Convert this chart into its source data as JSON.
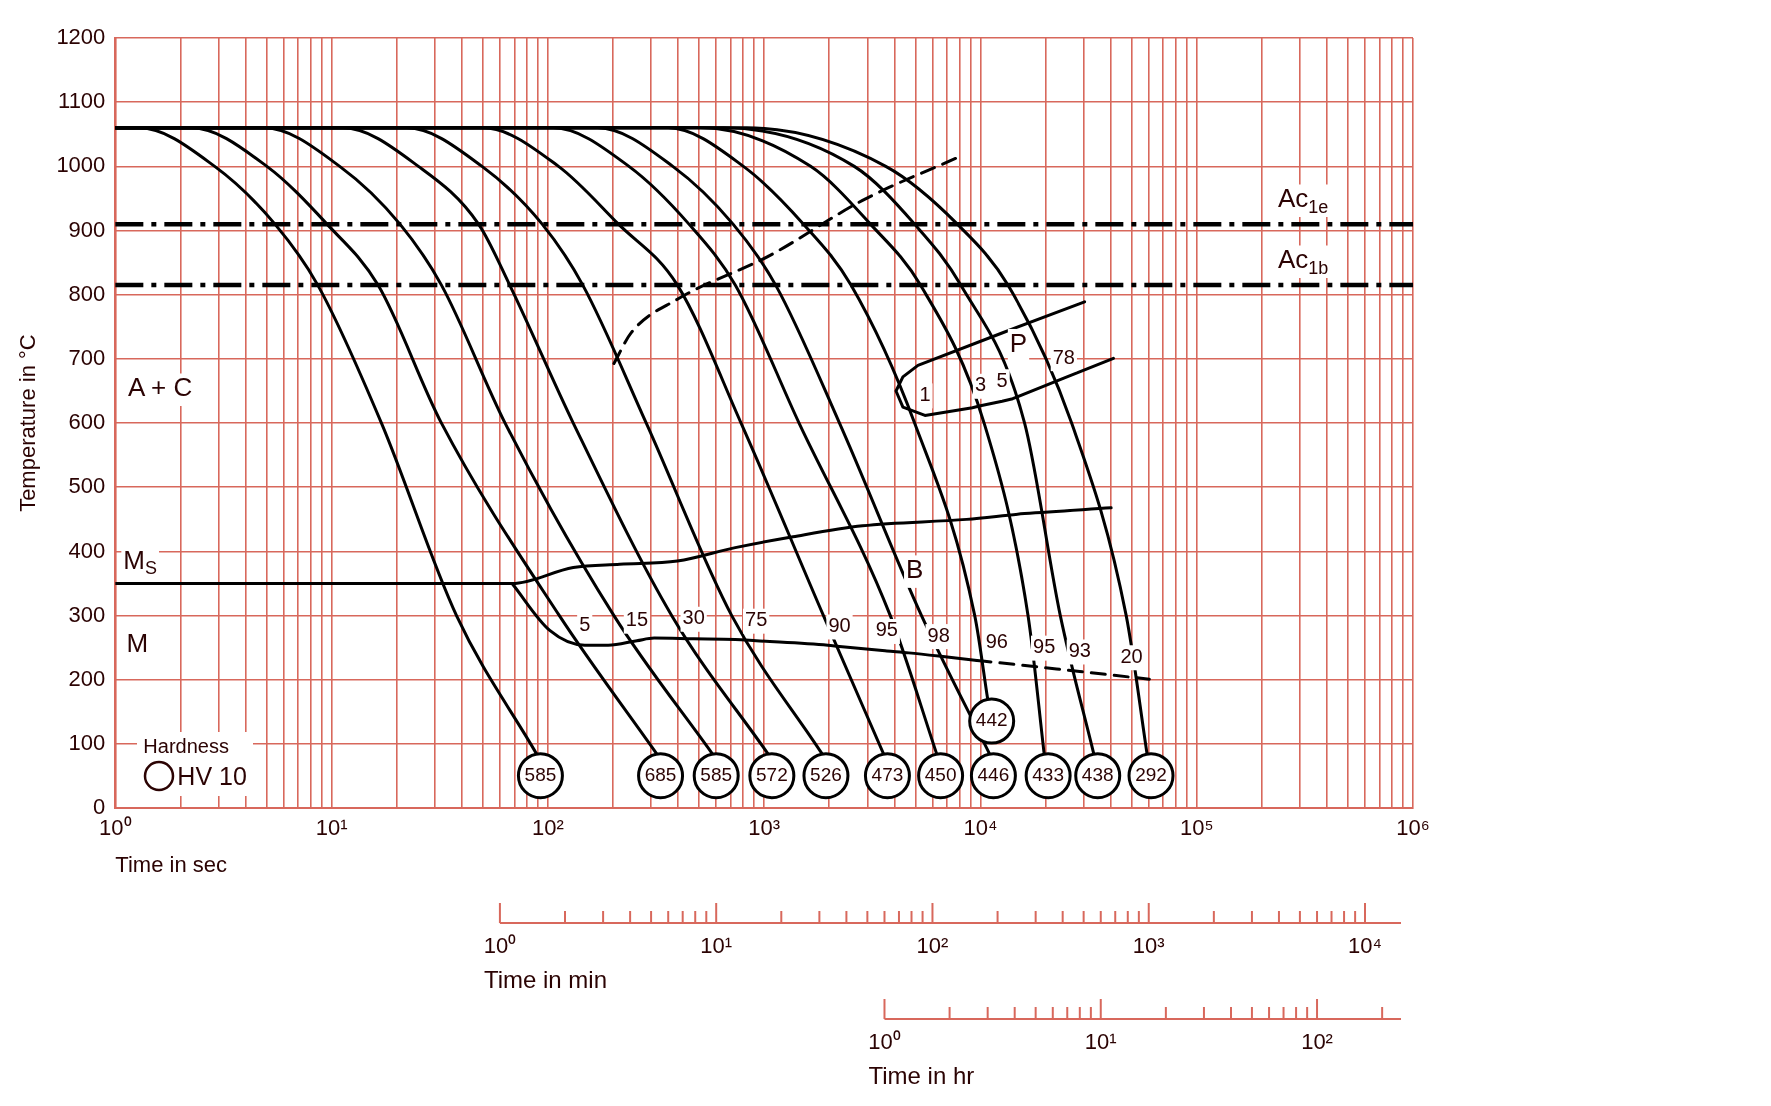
{
  "chart_data": {
    "type": "line",
    "xlabel": "Time in sec",
    "ylabel": "Temperature in °C",
    "log": "x",
    "grid": true,
    "legend_title": "Hardness",
    "xlim": [
      1,
      1000000
    ],
    "ylim": [
      0,
      1200
    ],
    "xticks": [
      {
        "value": 1,
        "label": "10⁰"
      },
      {
        "value": 2,
        "label": null
      },
      {
        "value": 3,
        "label": null
      },
      {
        "value": 4,
        "label": null
      },
      {
        "value": 5,
        "label": null
      },
      {
        "value": 6,
        "label": null
      },
      {
        "value": 7,
        "label": null
      },
      {
        "value": 8,
        "label": null
      },
      {
        "value": 9,
        "label": null
      },
      {
        "value": 10,
        "label": "10¹"
      },
      {
        "value": 20,
        "label": null
      },
      {
        "value": 30,
        "label": null
      },
      {
        "value": 40,
        "label": null
      },
      {
        "value": 50,
        "label": null
      },
      {
        "value": 60,
        "label": null
      },
      {
        "value": 70,
        "label": null
      },
      {
        "value": 80,
        "label": null
      },
      {
        "value": 90,
        "label": null
      },
      {
        "value": 100,
        "label": "10²"
      },
      {
        "value": 200,
        "label": null
      },
      {
        "value": 300,
        "label": null
      },
      {
        "value": 400,
        "label": null
      },
      {
        "value": 500,
        "label": null
      },
      {
        "value": 600,
        "label": null
      },
      {
        "value": 700,
        "label": null
      },
      {
        "value": 800,
        "label": null
      },
      {
        "value": 900,
        "label": null
      },
      {
        "value": 1000,
        "label": "10³"
      },
      {
        "value": 2000,
        "label": null
      },
      {
        "value": 3000,
        "label": null
      },
      {
        "value": 4000,
        "label": null
      },
      {
        "value": 5000,
        "label": null
      },
      {
        "value": 6000,
        "label": null
      },
      {
        "value": 7000,
        "label": null
      },
      {
        "value": 8000,
        "label": null
      },
      {
        "value": 9000,
        "label": null
      },
      {
        "value": 10000,
        "label": "10⁴"
      },
      {
        "value": 20000,
        "label": null
      },
      {
        "value": 30000,
        "label": null
      },
      {
        "value": 40000,
        "label": null
      },
      {
        "value": 50000,
        "label": null
      },
      {
        "value": 60000,
        "label": null
      },
      {
        "value": 70000,
        "label": null
      },
      {
        "value": 80000,
        "label": null
      },
      {
        "value": 90000,
        "label": null
      },
      {
        "value": 100000,
        "label": "10⁵"
      },
      {
        "value": 200000,
        "label": null
      },
      {
        "value": 300000,
        "label": null
      },
      {
        "value": 400000,
        "label": null
      },
      {
        "value": 500000,
        "label": null
      },
      {
        "value": 600000,
        "label": null
      },
      {
        "value": 700000,
        "label": null
      },
      {
        "value": 800000,
        "label": null
      },
      {
        "value": 900000,
        "label": null
      },
      {
        "value": 1000000,
        "label": "10⁶"
      }
    ],
    "yticks": [
      0,
      100,
      200,
      300,
      400,
      500,
      600,
      700,
      800,
      900,
      1000,
      1100,
      1200
    ],
    "ref_lines": [
      {
        "axis": "y",
        "value": 910,
        "label": "Ac$_{1e}$",
        "color": "#000000",
        "line_style": "dashdot"
      },
      {
        "axis": "y",
        "value": 815,
        "label": "Ac$_{1b}$",
        "color": "#000000",
        "line_style": "dashdot"
      }
    ],
    "series": [
      {
        "color": "#000000",
        "x": [
          1,
          1.29,
          2.88,
          5.47,
          8.63,
          17.0,
          37.8,
          88.5
        ],
        "values": [
          1060,
          1060,
          1000,
          910,
          815,
          600,
          300,
          85
        ]
      },
      {
        "color": "#000000",
        "x": [
          1,
          2.25,
          5.02,
          9.52,
          16.4,
          32.2,
          113,
          318
        ],
        "values": [
          1060,
          1060,
          1000,
          910,
          815,
          600,
          300,
          85
        ]
      },
      {
        "color": "#000000",
        "x": [
          1,
          4.9,
          10.9,
          20.7,
          32.2,
          63.4,
          202,
          575
        ],
        "values": [
          1060,
          1060,
          1000,
          910,
          815,
          600,
          300,
          85
        ]
      },
      {
        "color": "#000000",
        "x": [
          1,
          11.3,
          25.2,
          47.8,
          66.6,
          131,
          374,
          1040
        ],
        "values": [
          1060,
          1060,
          1000,
          910,
          815,
          600,
          300,
          85
        ]
      },
      {
        "color": "#000000",
        "x": [
          1,
          22.3,
          49.6,
          94.1,
          145,
          285,
          708,
          1850
        ],
        "values": [
          1060,
          1060,
          1000,
          910,
          815,
          600,
          300,
          85
        ]
      },
      {
        "color": "#000000",
        "x": [
          1,
          50.2,
          112,
          212,
          397,
          782,
          1880,
          3560
        ],
        "values": [
          1060,
          1060,
          1000,
          910,
          815,
          600,
          300,
          85
        ]
      },
      {
        "color": "#000000",
        "x": [
          1,
          106,
          237,
          449,
          735,
          1450,
          3830,
          6270
        ],
        "values": [
          1060,
          1060,
          1000,
          910,
          815,
          600,
          300,
          85
        ]
      },
      {
        "color": "#000000",
        "x": [
          1,
          170,
          378,
          718,
          1130,
          2230,
          5340,
          11000
        ],
        "values": [
          1060,
          1060,
          1000,
          910,
          815,
          600,
          300,
          85
        ]
      },
      {
        "color": "#000000",
        "x": [
          1,
          360,
          802,
          1520,
          2520,
          4960,
          9410,
          10800
        ],
        "values": [
          1060,
          1060,
          1000,
          910,
          815,
          600,
          300,
          170
        ]
      },
      {
        "color": "#000000",
        "x": [
          1,
          508,
          1640,
          3100,
          5280,
          10400,
          16600,
          19700
        ],
        "values": [
          1060,
          1060,
          1000,
          910,
          815,
          600,
          300,
          85
        ]
      },
      {
        "color": "#000000",
        "x": [
          1,
          650,
          2610,
          4960,
          8110,
          16000,
          23400,
          33400
        ],
        "values": [
          1060,
          1060,
          1000,
          910,
          815,
          600,
          300,
          85
        ]
      },
      {
        "color": "#000000",
        "x": [
          1,
          832,
          3650,
          7820,
          13400,
          26400,
          47200,
          58900
        ],
        "values": [
          1060,
          1060,
          1000,
          910,
          815,
          600,
          300,
          85
        ]
      },
      {
        "name": "M$_{S}$",
        "color": "#000000",
        "x": [
          1,
          68.3,
          131,
          215,
          397,
          735,
          1360,
          2850,
          8630,
          16000,
          40200
        ],
        "values": [
          350,
          350,
          375,
          380,
          385,
          406,
          423,
          440,
          450,
          459,
          468
        ]
      },
      {
        "color": "#000000",
        "x": [
          68.3,
          102,
          148,
          190,
          258,
          310,
          472,
          735,
          918,
          1970,
          2230,
          3690,
          4660,
          6410,
          9640
        ],
        "values": [
          350,
          277,
          254,
          254,
          261,
          265,
          264,
          263,
          261,
          254,
          252,
          245,
          242,
          237,
          230
        ]
      },
      {
        "color": "#000000",
        "line_style": "dashed",
        "x": [
          9640,
          11900,
          19700,
          28800,
          50000,
          60400
        ],
        "values": [
          230,
          227,
          219,
          213,
          204,
          201
        ]
      },
      {
        "color": "#000000",
        "line_style": "dashed",
        "x": [
          202,
          243,
          397,
          1060,
          2850,
          8110
        ],
        "values": [
          693,
          741,
          793,
          861,
          947,
          1016
        ]
      },
      {
        "color": "#000000",
        "x": [
          30300,
          12500,
          5140,
          4380,
          4070,
          4380,
          5540,
          9180,
          10000,
          12600,
          14100,
          24300,
          41200
        ],
        "values": [
          789,
          740,
          690,
          672,
          650,
          625,
          612,
          624,
          627,
          634,
          638,
          670,
          701
        ]
      }
    ],
    "annotations": [
      "HV 10",
      "A + C",
      "M",
      "B",
      "P",
      "Time in min",
      "10⁰",
      "10¹",
      "10²",
      "10³",
      "10⁴",
      "Time in hr",
      "10⁰",
      "10¹",
      "10²",
      {
        "text": "585",
        "x": 88.5,
        "y": 85
      },
      {
        "text": "685",
        "x": 318,
        "y": 85
      },
      {
        "text": "585",
        "x": 575,
        "y": 85
      },
      {
        "text": "572",
        "x": 1040,
        "y": 85
      },
      {
        "text": "526",
        "x": 1850,
        "y": 85
      },
      {
        "text": "473",
        "x": 3560,
        "y": 85
      },
      {
        "text": "450",
        "x": 6270,
        "y": 85
      },
      {
        "text": "446",
        "x": 11000,
        "y": 85
      },
      {
        "text": "442",
        "x": 10800,
        "y": 170
      },
      {
        "text": "433",
        "x": 19700,
        "y": 85
      },
      {
        "text": "438",
        "x": 33400,
        "y": 85
      },
      {
        "text": "292",
        "x": 58900,
        "y": 85
      },
      {
        "text": "5",
        "x": 148,
        "y": 254
      },
      {
        "text": "15",
        "x": 258,
        "y": 261
      },
      {
        "text": "30",
        "x": 472,
        "y": 264
      },
      {
        "text": "75",
        "x": 918,
        "y": 261
      },
      {
        "text": "90",
        "x": 2230,
        "y": 252
      },
      {
        "text": "95",
        "x": 3690,
        "y": 245
      },
      {
        "text": "98",
        "x": 6410,
        "y": 237
      },
      {
        "text": "96",
        "x": 11900,
        "y": 227
      },
      {
        "text": "95",
        "x": 19700,
        "y": 219
      },
      {
        "text": "93",
        "x": 28800,
        "y": 213
      },
      {
        "text": "20",
        "x": 50000,
        "y": 204
      },
      {
        "text": "1",
        "x": 5540,
        "y": 612
      },
      {
        "text": "3",
        "x": 10000,
        "y": 627
      },
      {
        "text": "5",
        "x": 12600,
        "y": 634
      },
      {
        "text": "78",
        "x": 24300,
        "y": 670
      }
    ]
  }
}
